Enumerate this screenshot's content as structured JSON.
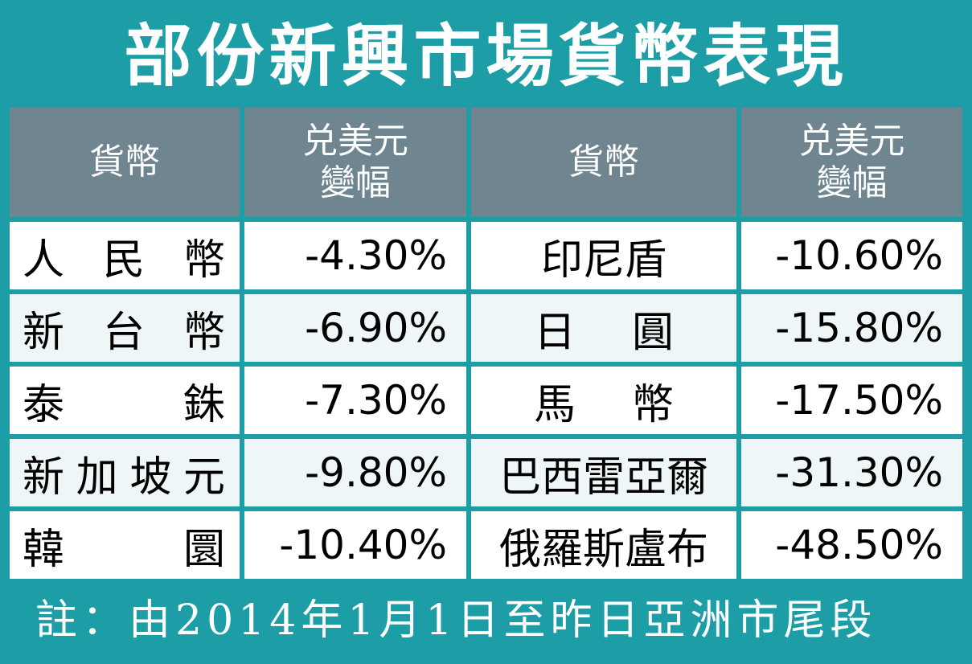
{
  "title": "部份新興市場貨幣表現",
  "headers": {
    "currency": "貨幣",
    "change_line1": "兑美元",
    "change_line2": "變幅"
  },
  "chart_data": {
    "type": "table",
    "title": "部份新興市場貨幣表現",
    "columns": [
      "貨幣",
      "兑美元變幅",
      "貨幣",
      "兑美元變幅"
    ],
    "left": [
      {
        "currency": "人民幣",
        "change": "-4.30%"
      },
      {
        "currency": "新台幣",
        "change": "-6.90%"
      },
      {
        "currency": "泰銖",
        "change": "-7.30%"
      },
      {
        "currency": "新加坡元",
        "change": "-9.80%"
      },
      {
        "currency": "韓圜",
        "change": "-10.40%"
      }
    ],
    "right": [
      {
        "currency": "印尼盾",
        "change": "-10.60%"
      },
      {
        "currency": "日圓",
        "change": "-15.80%"
      },
      {
        "currency": "馬幣",
        "change": "-17.50%"
      },
      {
        "currency": "巴西雷亞爾",
        "change": "-31.30%"
      },
      {
        "currency": "俄羅斯盧布",
        "change": "-48.50%"
      }
    ]
  },
  "note": "註：由2014年1月1日至昨日亞洲市尾段",
  "colors": {
    "background": "#1d9ea6",
    "header": "#6f8590",
    "row": "#ffffff",
    "row_alt": "#eef6f7"
  }
}
